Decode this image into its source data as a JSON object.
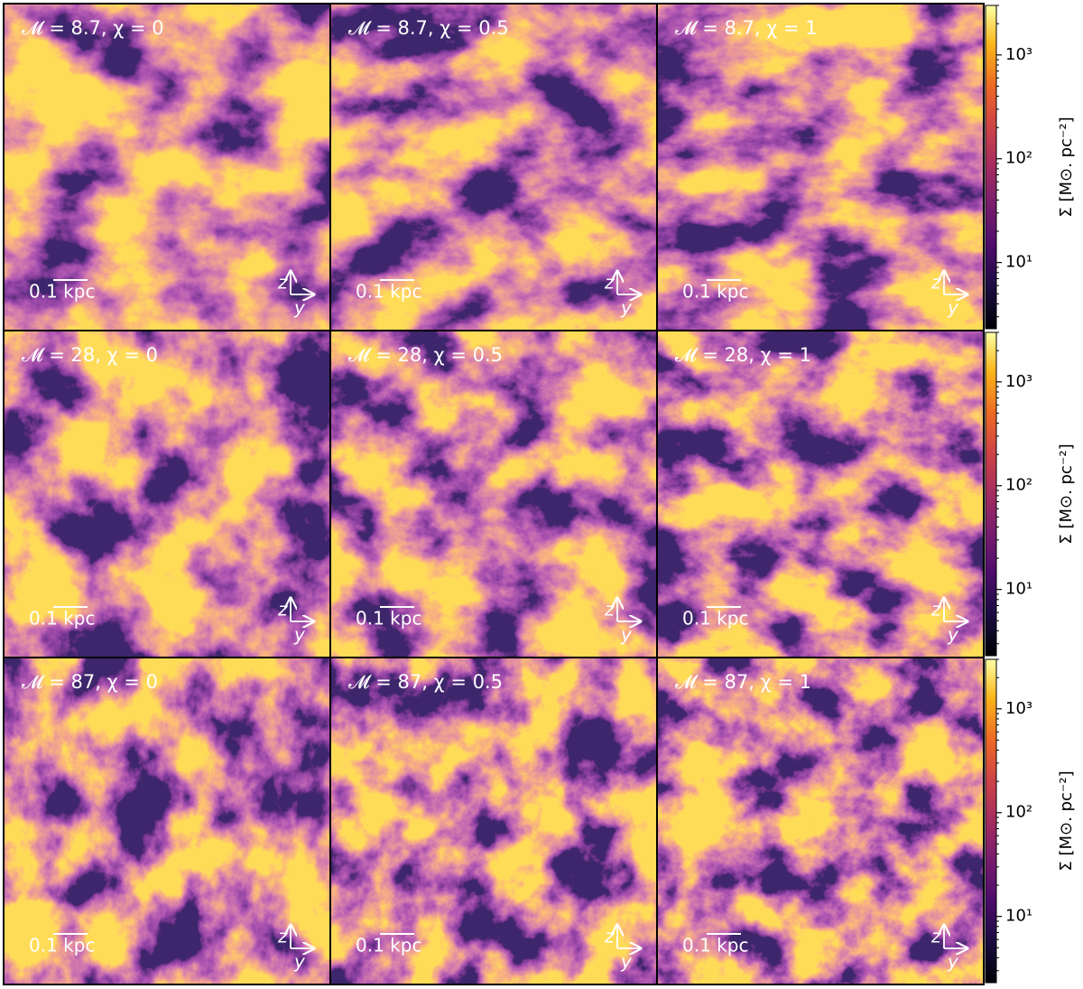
{
  "panels": [
    {
      "label": "𝓜 = 8.7, χ = 0",
      "scale_bar": "0.1 kpc",
      "axis_up": "z",
      "axis_right": "y"
    },
    {
      "label": "𝓜 = 8.7, χ = 0.5",
      "scale_bar": "0.1 kpc",
      "axis_up": "z",
      "axis_right": "y"
    },
    {
      "label": "𝓜 = 8.7, χ = 1",
      "scale_bar": "0.1 kpc",
      "axis_up": "z",
      "axis_right": "y"
    },
    {
      "label": "𝓜 = 28, χ = 0",
      "scale_bar": "0.1 kpc",
      "axis_up": "z",
      "axis_right": "y"
    },
    {
      "label": "𝓜 = 28, χ = 0.5",
      "scale_bar": "0.1 kpc",
      "axis_up": "z",
      "axis_right": "y"
    },
    {
      "label": "𝓜 = 28, χ = 1",
      "scale_bar": "0.1 kpc",
      "axis_up": "z",
      "axis_right": "y"
    },
    {
      "label": "𝓜 = 87, χ = 0",
      "scale_bar": "0.1 kpc",
      "axis_up": "z",
      "axis_right": "y"
    },
    {
      "label": "𝓜 = 87, χ = 0.5",
      "scale_bar": "0.1 kpc",
      "axis_up": "z",
      "axis_right": "y"
    },
    {
      "label": "𝓜 = 87, χ = 1",
      "scale_bar": "0.1 kpc",
      "axis_up": "z",
      "axis_right": "y"
    }
  ],
  "colorbars": [
    {
      "label": "Σ [M⊙. pc⁻²]",
      "scale": "log",
      "ylim": [
        2.3,
        3000
      ],
      "yticks": [
        {
          "value": 10,
          "label": "10¹"
        },
        {
          "value": 100,
          "label": "10²"
        },
        {
          "value": 1000,
          "label": "10³"
        }
      ],
      "minor_yticks": [
        3,
        4,
        5,
        6,
        7,
        8,
        9,
        20,
        30,
        40,
        50,
        60,
        70,
        80,
        90,
        200,
        300,
        400,
        500,
        600,
        700,
        800,
        900,
        2000,
        3000
      ]
    },
    {
      "label": "Σ [M⊙. pc⁻²]",
      "scale": "log",
      "ylim": [
        2.3,
        3000
      ],
      "yticks": [
        {
          "value": 10,
          "label": "10¹"
        },
        {
          "value": 100,
          "label": "10²"
        },
        {
          "value": 1000,
          "label": "10³"
        }
      ],
      "minor_yticks": [
        3,
        4,
        5,
        6,
        7,
        8,
        9,
        20,
        30,
        40,
        50,
        60,
        70,
        80,
        90,
        200,
        300,
        400,
        500,
        600,
        700,
        800,
        900,
        2000,
        3000
      ]
    },
    {
      "label": "Σ [M⊙. pc⁻²]",
      "scale": "log",
      "ylim": [
        2.3,
        3000
      ],
      "yticks": [
        {
          "value": 10,
          "label": "10¹"
        },
        {
          "value": 100,
          "label": "10²"
        },
        {
          "value": 1000,
          "label": "10³"
        }
      ],
      "minor_yticks": [
        3,
        4,
        5,
        6,
        7,
        8,
        9,
        20,
        30,
        40,
        50,
        60,
        70,
        80,
        90,
        200,
        300,
        400,
        500,
        600,
        700,
        800,
        900,
        2000,
        3000
      ]
    }
  ]
}
